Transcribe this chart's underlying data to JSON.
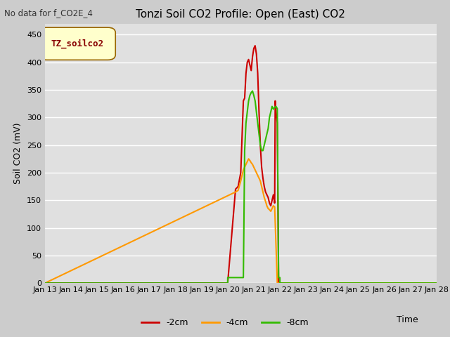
{
  "title": "Tonzi Soil CO2 Profile: Open (East) CO2",
  "no_data_text": "No data for f_CO2E_4",
  "xlabel": "Time",
  "ylabel": "Soil CO2 (mV)",
  "ylim": [
    0,
    470
  ],
  "yticks": [
    0,
    50,
    100,
    150,
    200,
    250,
    300,
    350,
    400,
    450
  ],
  "background_color": "#cccccc",
  "plot_bg_color": "#e0e0e0",
  "legend_label": "TZ_soilco2",
  "legend_bg": "#ffffcc",
  "legend_border": "#996600",
  "series": {
    "neg2cm": {
      "label": "-2cm",
      "color": "#cc0000",
      "lw": 1.5,
      "x": [
        13.0,
        20.0,
        20.3,
        20.4,
        20.5,
        20.6,
        20.65,
        20.7,
        20.75,
        20.8,
        20.85,
        20.9,
        20.95,
        21.0,
        21.05,
        21.1,
        21.15,
        21.2,
        21.25,
        21.3,
        21.35,
        21.4,
        21.45,
        21.5,
        21.55,
        21.6,
        21.65,
        21.7,
        21.75,
        21.8,
        21.82,
        21.85,
        21.9,
        21.95,
        22.0,
        28.0
      ],
      "y": [
        0,
        0,
        170,
        175,
        200,
        330,
        335,
        380,
        400,
        405,
        395,
        385,
        410,
        425,
        430,
        415,
        380,
        310,
        250,
        210,
        190,
        175,
        165,
        160,
        155,
        145,
        140,
        150,
        160,
        145,
        330,
        310,
        290,
        0,
        0,
        0
      ]
    },
    "neg4cm": {
      "label": "-4cm",
      "color": "#ff9900",
      "lw": 1.5,
      "x": [
        13.0,
        20.3,
        20.4,
        20.5,
        20.6,
        20.65,
        20.7,
        20.75,
        20.8,
        20.85,
        20.9,
        20.95,
        21.0,
        21.05,
        21.1,
        21.15,
        21.2,
        21.25,
        21.3,
        21.35,
        21.4,
        21.45,
        21.5,
        21.55,
        21.6,
        21.65,
        21.7,
        21.75,
        21.8,
        21.9,
        28.0
      ],
      "y": [
        0,
        165,
        168,
        185,
        205,
        210,
        215,
        220,
        225,
        222,
        218,
        215,
        210,
        205,
        200,
        195,
        190,
        185,
        175,
        165,
        155,
        148,
        140,
        135,
        133,
        130,
        135,
        140,
        138,
        0,
        0
      ]
    },
    "neg8cm": {
      "label": "-8cm",
      "color": "#33bb00",
      "lw": 1.5,
      "x": [
        13.0,
        20.0,
        20.001,
        20.3,
        20.4,
        20.45,
        20.5,
        20.55,
        20.6,
        20.65,
        20.7,
        20.75,
        20.8,
        20.85,
        20.9,
        20.95,
        21.0,
        21.05,
        21.1,
        21.15,
        21.2,
        21.25,
        21.3,
        21.35,
        21.4,
        21.45,
        21.5,
        21.55,
        21.6,
        21.65,
        21.7,
        21.75,
        21.8,
        21.85,
        21.9,
        21.95,
        22.0,
        22.001,
        22.5,
        28.0
      ],
      "y": [
        0,
        0,
        10,
        10,
        10,
        10,
        10,
        10,
        10,
        240,
        290,
        310,
        330,
        340,
        345,
        348,
        340,
        330,
        310,
        290,
        270,
        250,
        240,
        240,
        250,
        260,
        270,
        280,
        300,
        310,
        320,
        315,
        318,
        320,
        316,
        10,
        10,
        0,
        0,
        0
      ]
    }
  },
  "xstart": 13,
  "xend": 28,
  "xtick_labels": [
    "Jan 13",
    "Jan 14",
    "Jan 15",
    "Jan 16",
    "Jan 17",
    "Jan 18",
    "Jan 19",
    "Jan 20",
    "Jan 21",
    "Jan 22",
    "Jan 23",
    "Jan 24",
    "Jan 25",
    "Jan 26",
    "Jan 27",
    "Jan 28"
  ],
  "title_fontsize": 11,
  "axis_label_fontsize": 9,
  "tick_fontsize": 8
}
